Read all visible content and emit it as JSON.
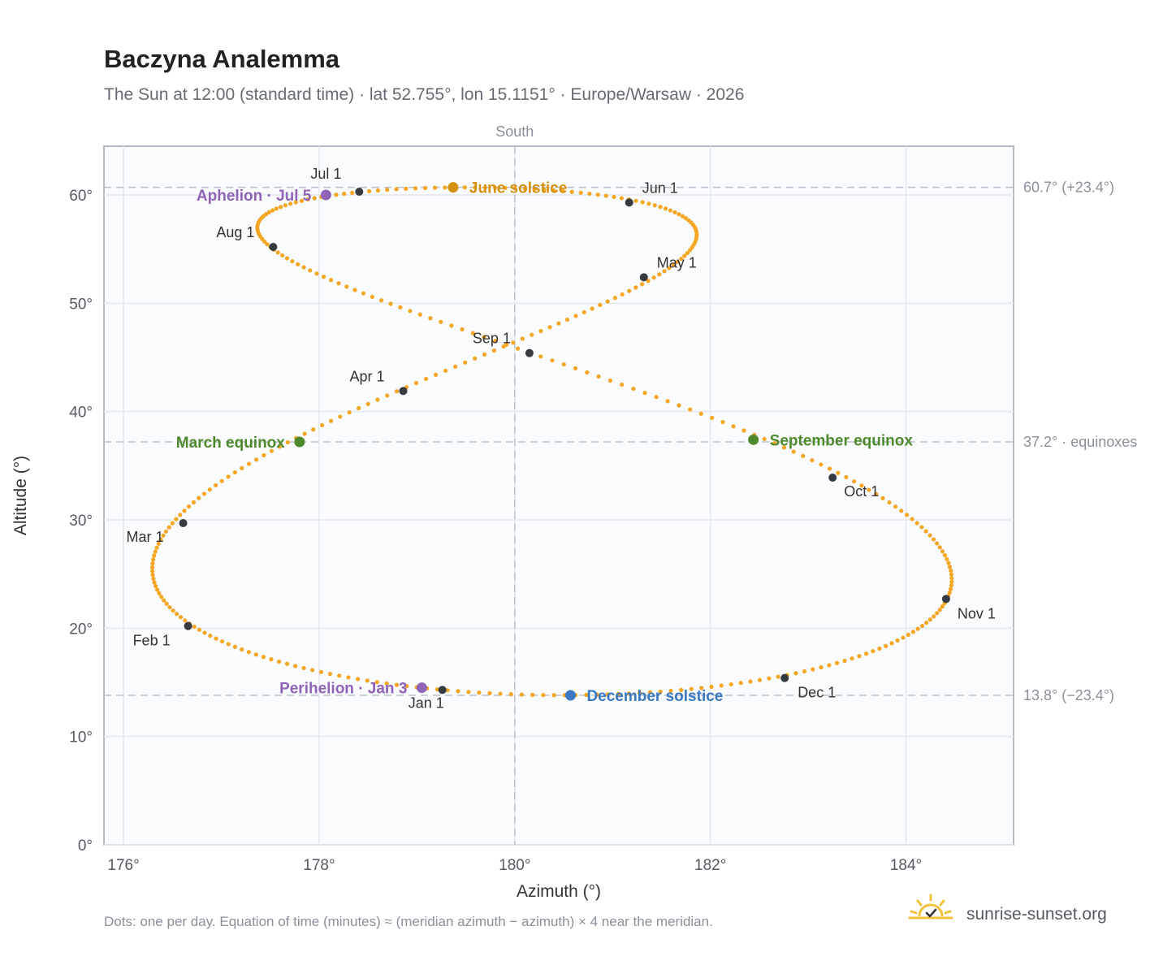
{
  "header": {
    "title": "Baczyna Analemma",
    "subtitle": "The Sun at 12:00 (standard time) · lat 52.755°, lon 15.1151° · Europe/Warsaw · 2026"
  },
  "chart_data": {
    "type": "scatter",
    "xlabel": "Azimuth (°)",
    "ylabel": "Altitude (°)",
    "xlim": [
      175.8,
      185.1
    ],
    "ylim": [
      0,
      64.5
    ],
    "x_ticks": [
      176,
      178,
      180,
      182,
      184
    ],
    "x_tick_labels": [
      "176°",
      "178°",
      "180°",
      "182°",
      "184°"
    ],
    "y_ticks": [
      0,
      10,
      20,
      30,
      40,
      50,
      60
    ],
    "y_tick_labels": [
      "0°",
      "10°",
      "20°",
      "30°",
      "40°",
      "50°",
      "60°"
    ],
    "grid": true,
    "meridian": {
      "azimuth": 180,
      "label": "South"
    },
    "reference_lines": [
      {
        "altitude": 60.7,
        "label": "60.7° (+23.4°)"
      },
      {
        "altitude": 37.2,
        "label": "37.2° · equinoxes"
      },
      {
        "altitude": 13.8,
        "label": "13.8° (−23.4°)"
      }
    ],
    "series_color": "#f5a623",
    "month_markers": [
      {
        "label": "Jan 1",
        "az": 179.26,
        "alt": 14.3
      },
      {
        "label": "Feb 1",
        "az": 176.66,
        "alt": 20.2
      },
      {
        "label": "Mar 1",
        "az": 176.61,
        "alt": 29.7
      },
      {
        "label": "Apr 1",
        "az": 178.86,
        "alt": 41.9
      },
      {
        "label": "May 1",
        "az": 181.32,
        "alt": 52.4
      },
      {
        "label": "Jun 1",
        "az": 181.17,
        "alt": 59.3
      },
      {
        "label": "Jul 1",
        "az": 178.41,
        "alt": 60.3
      },
      {
        "label": "Aug 1",
        "az": 177.53,
        "alt": 55.2
      },
      {
        "label": "Sep 1",
        "az": 180.15,
        "alt": 45.4
      },
      {
        "label": "Oct 1",
        "az": 183.25,
        "alt": 33.9
      },
      {
        "label": "Nov 1",
        "az": 184.41,
        "alt": 22.7
      },
      {
        "label": "Dec 1",
        "az": 182.76,
        "alt": 15.4
      }
    ],
    "events": [
      {
        "label": "June solstice",
        "az": 179.37,
        "alt": 60.7,
        "color": "#d4900f"
      },
      {
        "label": "Aphelion · Jul 5",
        "az": 178.07,
        "alt": 60.0,
        "color": "#8e63b8"
      },
      {
        "label": "March equinox",
        "az": 177.8,
        "alt": 37.2,
        "color": "#4e8a2c"
      },
      {
        "label": "September equinox",
        "az": 182.44,
        "alt": 37.4,
        "color": "#4e8a2c"
      },
      {
        "label": "Perihelion · Jan 3",
        "az": 179.05,
        "alt": 14.5,
        "color": "#8e63b8"
      },
      {
        "label": "December solstice",
        "az": 180.57,
        "alt": 13.8,
        "color": "#3a78c2"
      }
    ]
  },
  "footer": {
    "note": "Dots: one per day. Equation of time (minutes) ≈ (meridian azimuth − azimuth) × 4 near the meridian.",
    "brand": "sunrise-sunset.org",
    "brand_icon": "sun-check-icon"
  }
}
